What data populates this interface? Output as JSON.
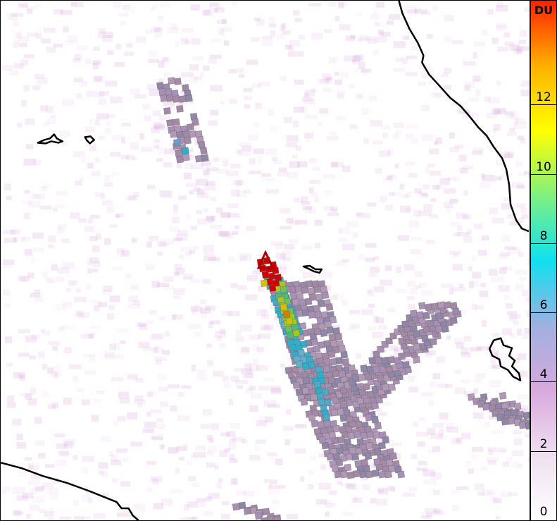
{
  "map": {
    "variable_unit": "DU",
    "colorbar": {
      "unit_label": "DU",
      "min": 0,
      "max": 15,
      "ticks": [
        {
          "value": 0,
          "label": "0"
        },
        {
          "value": 2,
          "label": "2"
        },
        {
          "value": 4,
          "label": "4"
        },
        {
          "value": 6,
          "label": "6"
        },
        {
          "value": 8,
          "label": "8"
        },
        {
          "value": 10,
          "label": "10"
        },
        {
          "value": 12,
          "label": "12"
        }
      ],
      "colors": [
        "#ffffff",
        "#efe0f0",
        "#d9a9dd",
        "#9fb0e0",
        "#10e0f0",
        "#80f080",
        "#ffff00",
        "#ffb000",
        "#ff2000"
      ]
    },
    "marker": {
      "symbol": "triangle",
      "color": "#aa0000"
    }
  }
}
